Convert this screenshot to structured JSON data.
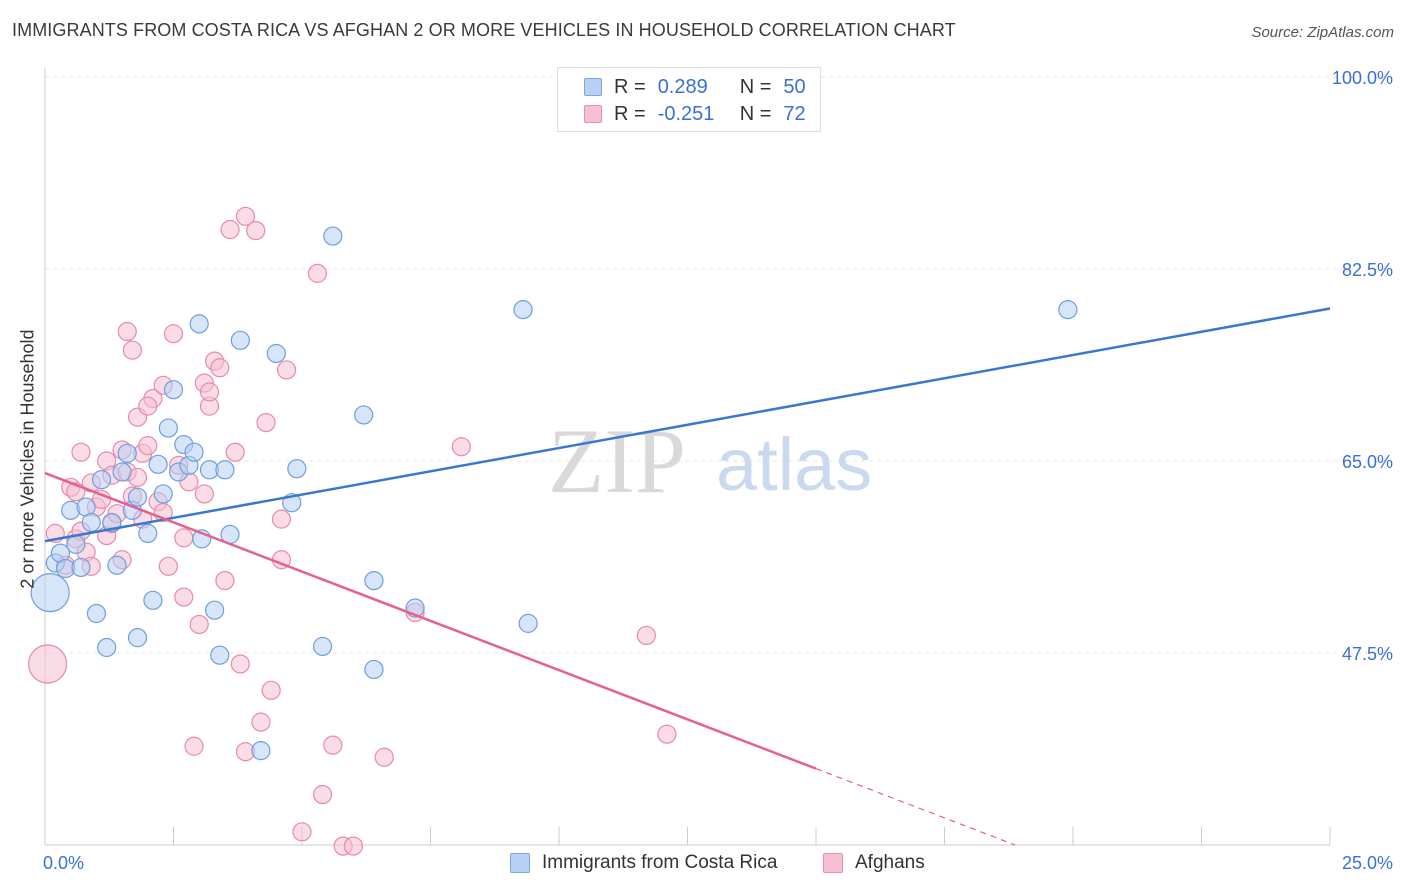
{
  "title": "IMMIGRANTS FROM COSTA RICA VS AFGHAN 2 OR MORE VEHICLES IN HOUSEHOLD CORRELATION CHART",
  "source": "Source: ZipAtlas.com",
  "watermark": {
    "zip": "ZIP",
    "atlas": "atlas"
  },
  "legend_top": {
    "series1": {
      "r_label": "R =",
      "r_value": "0.289",
      "n_label": "N =",
      "n_value": "50"
    },
    "series2": {
      "r_label": "R =",
      "r_value": "-0.251",
      "n_label": "N =",
      "n_value": "72"
    }
  },
  "legend_bottom": {
    "series1": "Immigrants from Costa Rica",
    "series2": "Afghans"
  },
  "colors": {
    "blue": "#3a78d0",
    "blue_fill": "#b7d0f3",
    "pink": "#e5608f",
    "pink_fill": "#f6bfd2",
    "tick_text": "#3a6fd8"
  },
  "chart_data": {
    "type": "scatter",
    "ylabel": "2 or more Vehicles in Household",
    "xlim": [
      0,
      25
    ],
    "ylim": [
      30,
      100
    ],
    "x_tick_labels": [
      "0.0%",
      "25.0%"
    ],
    "y_ticks": [
      100,
      82.5,
      65,
      47.5
    ],
    "y_tick_labels": [
      "100.0%",
      "82.5%",
      "65.0%",
      "47.5%"
    ],
    "grid": true,
    "series": [
      {
        "name": "Immigrants from Costa Rica",
        "color": "#3a78d0",
        "trend": {
          "x0": 0,
          "y0": 57.7,
          "x1": 25,
          "y1": 78.9,
          "solid_to": 25
        },
        "points": [
          [
            0.1,
            53.0,
            1
          ],
          [
            0.2,
            55.7,
            0
          ],
          [
            0.3,
            56.6,
            0
          ],
          [
            0.4,
            55.2,
            0
          ],
          [
            0.5,
            60.5,
            0
          ],
          [
            0.6,
            57.4,
            0
          ],
          [
            0.7,
            55.3,
            0
          ],
          [
            0.8,
            60.8,
            0
          ],
          [
            0.9,
            59.4,
            0
          ],
          [
            1.0,
            51.1,
            0
          ],
          [
            1.1,
            63.3,
            0
          ],
          [
            1.2,
            48.0,
            0
          ],
          [
            1.3,
            59.4,
            0
          ],
          [
            1.4,
            55.5,
            0
          ],
          [
            1.5,
            64.0,
            0
          ],
          [
            1.6,
            65.7,
            0
          ],
          [
            1.7,
            60.5,
            0
          ],
          [
            1.8,
            61.7,
            0
          ],
          [
            1.8,
            48.9,
            0
          ],
          [
            2.0,
            58.4,
            0
          ],
          [
            2.1,
            52.3,
            0
          ],
          [
            2.2,
            64.7,
            0
          ],
          [
            2.3,
            62.0,
            0
          ],
          [
            2.4,
            68.0,
            0
          ],
          [
            2.5,
            71.5,
            0
          ],
          [
            2.6,
            64.0,
            0
          ],
          [
            2.7,
            66.5,
            0
          ],
          [
            2.8,
            64.6,
            0
          ],
          [
            2.9,
            65.8,
            0
          ],
          [
            3.0,
            77.5,
            0
          ],
          [
            3.05,
            57.9,
            0
          ],
          [
            3.2,
            64.2,
            0
          ],
          [
            3.3,
            51.4,
            0
          ],
          [
            3.4,
            47.3,
            0
          ],
          [
            3.5,
            64.2,
            0
          ],
          [
            3.6,
            58.3,
            0
          ],
          [
            3.8,
            76.0,
            0
          ],
          [
            4.2,
            38.6,
            0
          ],
          [
            4.5,
            74.8,
            0
          ],
          [
            4.8,
            61.2,
            0
          ],
          [
            4.9,
            64.3,
            0
          ],
          [
            5.4,
            48.1,
            0
          ],
          [
            5.6,
            85.5,
            0
          ],
          [
            6.2,
            69.2,
            0
          ],
          [
            6.4,
            54.1,
            0
          ],
          [
            6.4,
            46.0,
            0
          ],
          [
            7.2,
            51.6,
            0
          ],
          [
            9.3,
            78.8,
            0
          ],
          [
            9.4,
            50.2,
            0
          ],
          [
            19.9,
            78.8,
            0
          ]
        ]
      },
      {
        "name": "Afghans",
        "color": "#e5608f",
        "trend": {
          "x0": 0,
          "y0": 63.9,
          "x1": 25,
          "y1": 19.0,
          "solid_to": 15
        },
        "points": [
          [
            0.05,
            46.5,
            1
          ],
          [
            0.2,
            58.4,
            0
          ],
          [
            0.4,
            55.5,
            0
          ],
          [
            0.5,
            62.6,
            0
          ],
          [
            0.6,
            57.9,
            0
          ],
          [
            0.7,
            58.6,
            0
          ],
          [
            0.7,
            65.8,
            0
          ],
          [
            0.8,
            56.7,
            0
          ],
          [
            0.9,
            63.0,
            0
          ],
          [
            1.0,
            60.8,
            0
          ],
          [
            1.1,
            61.5,
            0
          ],
          [
            1.2,
            65.0,
            0
          ],
          [
            1.2,
            58.2,
            0
          ],
          [
            1.3,
            63.7,
            0
          ],
          [
            1.3,
            59.3,
            0
          ],
          [
            1.4,
            60.2,
            0
          ],
          [
            1.5,
            56.0,
            0
          ],
          [
            1.5,
            66.0,
            0
          ],
          [
            1.6,
            64.0,
            0
          ],
          [
            1.7,
            61.8,
            0
          ],
          [
            1.7,
            75.1,
            0
          ],
          [
            1.8,
            63.5,
            0
          ],
          [
            1.8,
            69.0,
            0
          ],
          [
            1.9,
            65.7,
            0
          ],
          [
            1.9,
            59.7,
            0
          ],
          [
            2.0,
            66.4,
            0
          ],
          [
            2.1,
            70.7,
            0
          ],
          [
            2.2,
            61.3,
            0
          ],
          [
            2.3,
            71.9,
            0
          ],
          [
            2.3,
            60.3,
            0
          ],
          [
            2.4,
            55.4,
            0
          ],
          [
            2.5,
            76.6,
            0
          ],
          [
            2.6,
            64.6,
            0
          ],
          [
            2.7,
            52.6,
            0
          ],
          [
            2.8,
            63.1,
            0
          ],
          [
            2.9,
            39.0,
            0
          ],
          [
            3.0,
            50.1,
            0
          ],
          [
            3.1,
            72.1,
            0
          ],
          [
            3.1,
            62.0,
            0
          ],
          [
            3.2,
            70.0,
            0
          ],
          [
            3.2,
            71.3,
            0
          ],
          [
            3.3,
            74.1,
            0
          ],
          [
            3.4,
            73.5,
            0
          ],
          [
            3.5,
            54.1,
            0
          ],
          [
            3.6,
            86.1,
            0
          ],
          [
            3.7,
            65.8,
            0
          ],
          [
            3.8,
            46.5,
            0
          ],
          [
            3.9,
            38.5,
            0
          ],
          [
            3.9,
            87.3,
            0
          ],
          [
            4.1,
            86.0,
            0
          ],
          [
            4.2,
            41.2,
            0
          ],
          [
            4.3,
            68.5,
            0
          ],
          [
            4.4,
            44.1,
            0
          ],
          [
            4.6,
            59.7,
            0
          ],
          [
            4.6,
            56.0,
            0
          ],
          [
            4.7,
            73.3,
            0
          ],
          [
            5.0,
            31.2,
            0
          ],
          [
            5.3,
            82.1,
            0
          ],
          [
            5.4,
            34.6,
            0
          ],
          [
            5.6,
            39.1,
            0
          ],
          [
            5.8,
            29.9,
            0
          ],
          [
            6.0,
            29.9,
            0
          ],
          [
            6.6,
            38.0,
            0
          ],
          [
            7.2,
            51.2,
            0
          ],
          [
            8.1,
            66.3,
            0
          ],
          [
            11.7,
            49.1,
            0
          ],
          [
            12.1,
            40.1,
            0
          ],
          [
            2.0,
            70.0,
            0
          ],
          [
            1.6,
            76.8,
            0
          ],
          [
            0.9,
            55.4,
            0
          ],
          [
            2.7,
            58.0,
            0
          ],
          [
            0.6,
            62.2,
            0
          ]
        ]
      }
    ]
  }
}
